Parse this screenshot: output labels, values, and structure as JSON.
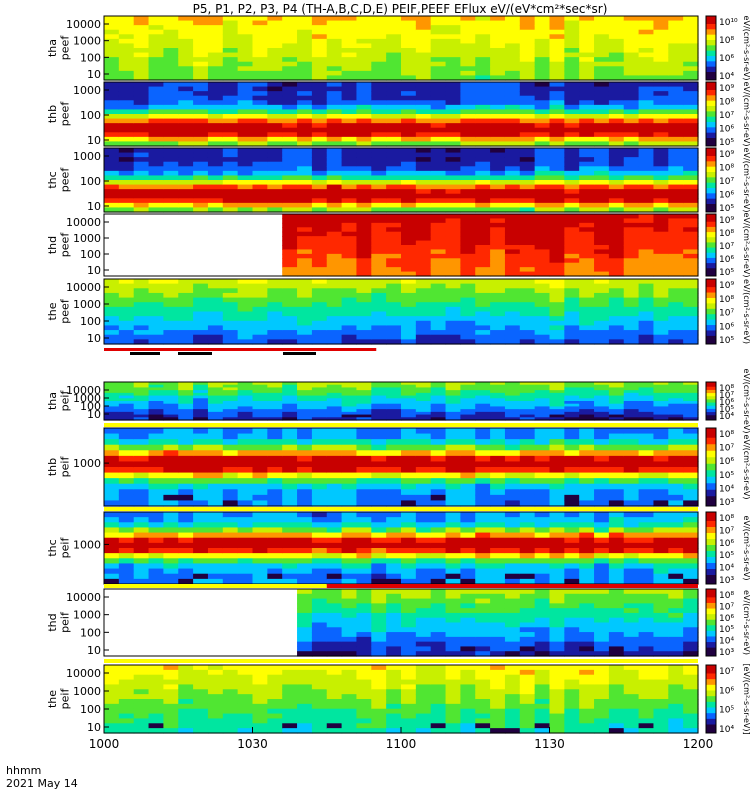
{
  "chart_data": {
    "type": "heatmap",
    "title": "P5, P1, P2, P3, P4 (TH-A,B,C,D,E) PEIF,PEEF EFlux eV/(eV*cm²*sec*sr)",
    "x_axis": {
      "ticks": [
        "1000",
        "1030",
        "1100",
        "1130",
        "1200"
      ],
      "corner_label_top": "hhmm",
      "corner_label_bottom": "2021 May 14"
    },
    "panels": [
      {
        "label_top": "tha",
        "label_bottom": "peef",
        "y_ticks": [
          "10000",
          "1000",
          "100",
          "10"
        ],
        "colorbar_ticks": [
          "10¹⁰",
          "10⁸",
          "10⁶",
          "10⁴"
        ],
        "colorbar_label": "eV/(cm²-s-sr-eV)",
        "profile": "electron",
        "data_gap_until": null
      },
      {
        "label_top": "thb",
        "label_bottom": "peef",
        "y_ticks": [
          "1000",
          "100",
          "10"
        ],
        "colorbar_ticks": [
          "10⁹",
          "10⁸",
          "10⁷",
          "10⁶",
          "10⁵"
        ],
        "colorbar_label": "eV/(cm²-s-sr-eV)",
        "profile": "electron_hot",
        "data_gap_until": null
      },
      {
        "label_top": "thc",
        "label_bottom": "peef",
        "y_ticks": [
          "1000",
          "100",
          "10"
        ],
        "colorbar_ticks": [
          "10⁹",
          "10⁸",
          "10⁷",
          "10⁶",
          "10⁵"
        ],
        "colorbar_label": "eV/(cm²-s-sr-eV)",
        "profile": "electron_hot",
        "data_gap_until": null
      },
      {
        "label_top": "thd",
        "label_bottom": "peef",
        "y_ticks": [
          "10000",
          "1000",
          "100",
          "10"
        ],
        "colorbar_ticks": [
          "10⁹",
          "10⁸",
          "10⁷",
          "10⁶",
          "10⁵"
        ],
        "colorbar_label": "eV/(cm²-s-sr-eV)",
        "profile": "electron_red",
        "data_gap_until": "1038"
      },
      {
        "label_top": "the",
        "label_bottom": "peef",
        "y_ticks": [
          "10000",
          "1000",
          "100",
          "10"
        ],
        "colorbar_ticks": [
          "10⁹",
          "10⁸",
          "10⁷",
          "10⁶",
          "10⁵"
        ],
        "colorbar_label": "eV/(cm²-s-sr-eV)",
        "profile": "electron_cool",
        "data_gap_until": null
      },
      {
        "label_top": "tha",
        "label_bottom": "peif",
        "y_ticks": [
          "10000",
          "1000",
          "100",
          "10"
        ],
        "colorbar_ticks": [
          "10⁸",
          "10⁷",
          "10⁶",
          "10⁵",
          "10⁴"
        ],
        "colorbar_label": "eV/(cm²-s-sr-eV)",
        "profile": "ion_low",
        "data_gap_until": null
      },
      {
        "label_top": "thb",
        "label_bottom": "peif",
        "y_ticks": [
          "1000"
        ],
        "colorbar_ticks": [
          "10⁸",
          "10⁷",
          "10⁶",
          "10⁵",
          "10⁴",
          "10³"
        ],
        "colorbar_label": "eV/(cm²-s-sr-eV)",
        "profile": "ion_band",
        "data_gap_until": null
      },
      {
        "label_top": "thc",
        "label_bottom": "peif",
        "y_ticks": [
          "1000"
        ],
        "colorbar_ticks": [
          "10⁸",
          "10⁷",
          "10⁶",
          "10⁵",
          "10⁴",
          "10³"
        ],
        "colorbar_label": "eV/(cm²-s-sr-eV)",
        "profile": "ion_band",
        "data_gap_until": null
      },
      {
        "label_top": "thd",
        "label_bottom": "peif",
        "y_ticks": [
          "10000",
          "1000",
          "100",
          "10"
        ],
        "colorbar_ticks": [
          "10⁸",
          "10⁷",
          "10⁶",
          "10⁵",
          "10⁴",
          "10³"
        ],
        "colorbar_label": "eV/(cm²-s-sr-eV)",
        "profile": "ion_low",
        "data_gap_until": "1040"
      },
      {
        "label_top": "the",
        "label_bottom": "peif",
        "y_ticks": [
          "10000",
          "1000",
          "100",
          "10"
        ],
        "colorbar_ticks": [
          "10⁷",
          "10⁶",
          "10⁵",
          "10⁴"
        ],
        "colorbar_label": "[eV/(cm²-s-sr-eV)]",
        "profile": "ion_warm",
        "data_gap_until": null
      }
    ],
    "colormap": [
      "#200040",
      "#1a1aa0",
      "#0a64ff",
      "#00c8ff",
      "#00e6a0",
      "#50e632",
      "#c8f000",
      "#ffff00",
      "#ff9600",
      "#ff2800",
      "#c80000"
    ],
    "colors": {
      "flag_red": "#e00000",
      "flag_yellow": "#ffff00",
      "flag_black": "#000000",
      "frame": "#000000",
      "gap": "#ffffff"
    }
  }
}
